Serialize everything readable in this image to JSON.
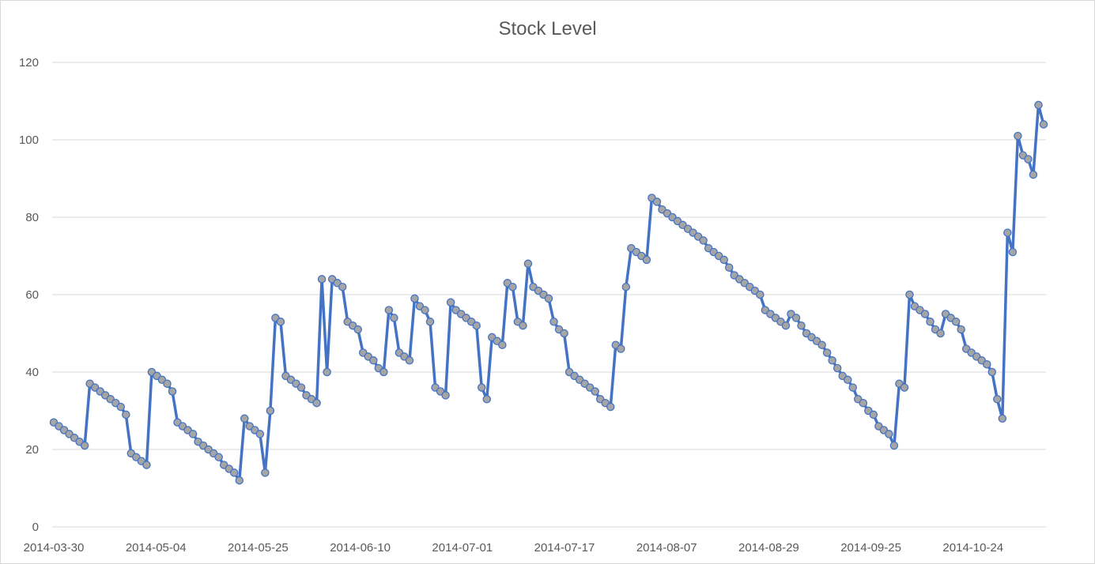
{
  "chart_data": {
    "type": "line",
    "title": "Stock Level",
    "xlabel": "",
    "ylabel": "",
    "ylim": [
      0,
      120
    ],
    "yticks": [
      0,
      20,
      40,
      60,
      80,
      100,
      120
    ],
    "grid": true,
    "legend": "none",
    "colors": {
      "line": "#4472C4",
      "marker_fill": "#A5A5A5",
      "marker_edge": "#4472C4",
      "grid": "#d9d9d9",
      "text": "#595959"
    },
    "xtick_labels": [
      "2014-03-30",
      "2014-05-04",
      "2014-05-25",
      "2014-06-10",
      "2014-07-01",
      "2014-07-17",
      "2014-08-07",
      "2014-08-29",
      "2014-09-25",
      "2014-10-24"
    ],
    "series": [
      {
        "values": [
          27,
          26,
          25,
          24,
          23,
          22,
          21,
          37,
          36,
          35,
          34,
          33,
          32,
          31,
          29,
          19,
          18,
          17,
          16,
          40,
          39,
          38,
          37,
          35,
          27,
          26,
          25,
          24,
          22,
          21,
          20,
          19,
          18,
          16,
          15,
          14,
          12,
          28,
          26,
          25,
          24,
          14,
          30,
          54,
          53,
          39,
          38,
          37,
          36,
          34,
          33,
          32,
          64,
          40,
          64,
          63,
          62,
          53,
          52,
          51,
          45,
          44,
          43,
          41,
          40,
          56,
          54,
          45,
          44,
          43,
          59,
          57,
          56,
          53,
          36,
          35,
          34,
          58,
          56,
          55,
          54,
          53,
          52,
          36,
          33,
          49,
          48,
          47,
          63,
          62,
          53,
          52,
          68,
          62,
          61,
          60,
          59,
          53,
          51,
          50,
          40,
          39,
          38,
          37,
          36,
          35,
          33,
          32,
          31,
          47,
          46,
          62,
          72,
          71,
          70,
          69,
          85,
          84,
          82,
          81,
          80,
          79,
          78,
          77,
          76,
          75,
          74,
          72,
          71,
          70,
          69,
          67,
          65,
          64,
          63,
          62,
          61,
          60,
          56,
          55,
          54,
          53,
          52,
          55,
          54,
          52,
          50,
          49,
          48,
          47,
          45,
          43,
          41,
          39,
          38,
          36,
          33,
          32,
          30,
          29,
          26,
          25,
          24,
          21,
          37,
          36,
          60,
          57,
          56,
          55,
          53,
          51,
          50,
          55,
          54,
          53,
          51,
          46,
          45,
          44,
          43,
          42,
          40,
          33,
          28,
          76,
          71,
          101,
          96,
          95,
          91,
          109,
          104
        ]
      }
    ]
  }
}
